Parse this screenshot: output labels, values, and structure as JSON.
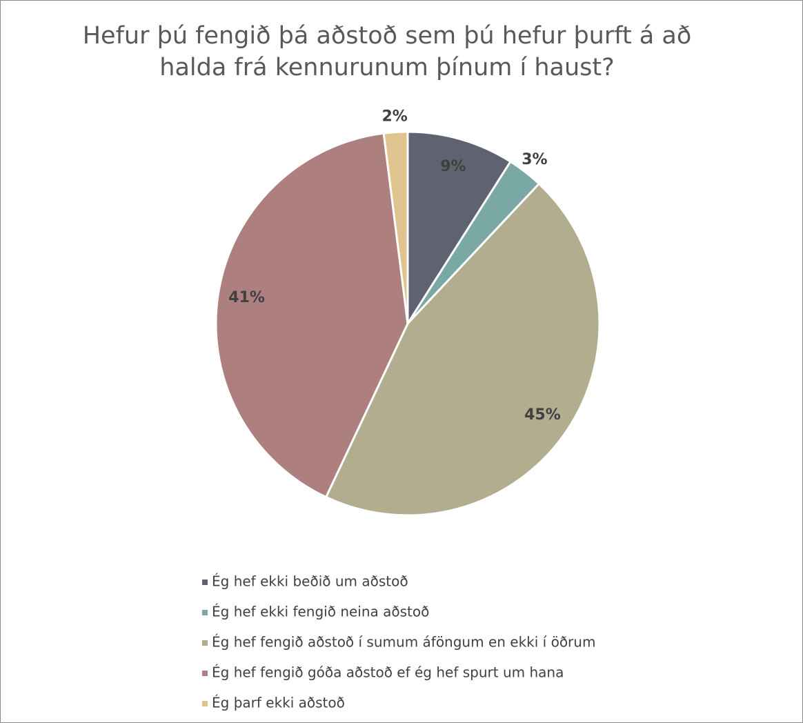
{
  "chart_data": {
    "type": "pie",
    "title": "Hefur þú fengið þá aðstoð sem þú hefur þurft á að halda frá kennurunum þínum í haust?",
    "categories": [
      "Ég hef ekki beðið um aðstoð",
      "Ég hef ekki fengið neina aðstoð",
      "Ég hef fengið aðstoð í sumum áföngum en ekki í öðrum",
      "Ég hef fengið góða aðstoð ef ég hef spurt um hana",
      "Ég þarf ekki aðstoð"
    ],
    "values": [
      9,
      3,
      45,
      41,
      2
    ],
    "value_labels": [
      "9%",
      "3%",
      "45%",
      "41%",
      "2%"
    ],
    "colors": [
      "#5f6271",
      "#7aa8a4",
      "#b2ad8f",
      "#ad7f7e",
      "#e0c48f"
    ],
    "legend": "bottom"
  }
}
